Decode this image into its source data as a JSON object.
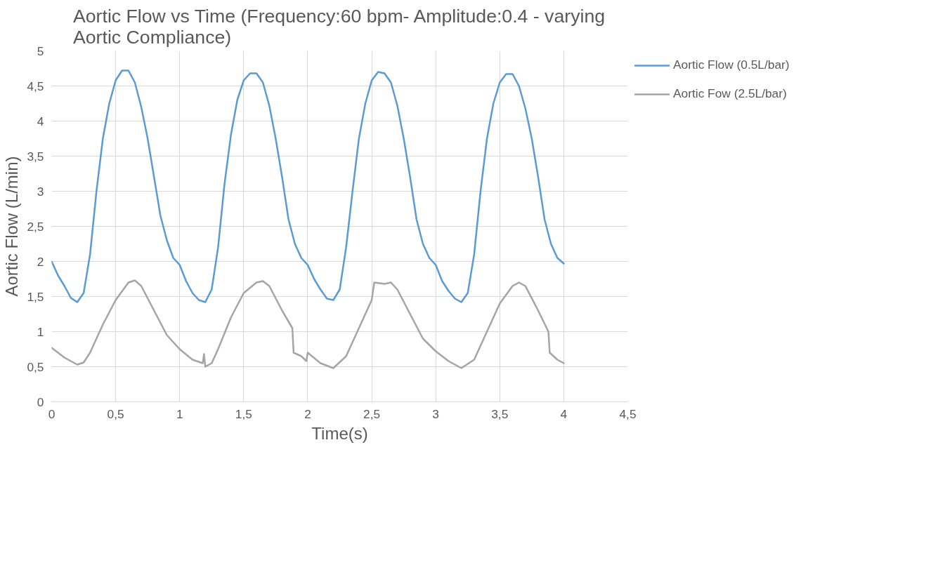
{
  "chart_data": {
    "type": "line",
    "title": "Aortic Flow vs Time (Frequency:60 bpm- Amplitude:0.4 - varying Aortic Compliance)",
    "xlabel": "Time(s)",
    "ylabel": "Aortic Flow (L/min)",
    "xlim": [
      0,
      4.5
    ],
    "xticks": [
      0,
      {
        "value": 0.5,
        "label": "0,5"
      },
      1,
      {
        "value": 1.5,
        "label": "1,5"
      },
      2,
      {
        "value": 2.5,
        "label": "2,5"
      },
      3,
      {
        "value": 3.5,
        "label": "3,5"
      },
      4,
      {
        "value": 4.5,
        "label": "4,5"
      }
    ],
    "ylim": [
      0,
      5
    ],
    "yticks": [
      0,
      {
        "value": 0.5,
        "label": "0,5"
      },
      1,
      {
        "value": 1.5,
        "label": "1,5"
      },
      2,
      {
        "value": 2.5,
        "label": "2,5"
      },
      3,
      {
        "value": 3.5,
        "label": "3,5"
      },
      4,
      {
        "value": 4.5,
        "label": "4,5"
      },
      5
    ],
    "grid": true,
    "legend": "right",
    "marker": "none",
    "line_style": "solid",
    "series": [
      {
        "name": "Aortic Flow (0.5L/bar)",
        "color": "#5b9bd5",
        "x": [
          0,
          0.05,
          0.1,
          0.15,
          0.2,
          0.25,
          0.3,
          0.35,
          0.4,
          0.45,
          0.5,
          0.55,
          0.6,
          0.65,
          0.7,
          0.75,
          0.8,
          0.85,
          0.9,
          0.95,
          1.0,
          1.05,
          1.1,
          1.15,
          1.2,
          1.25,
          1.3,
          1.35,
          1.4,
          1.45,
          1.5,
          1.55,
          1.6,
          1.65,
          1.7,
          1.75,
          1.8,
          1.85,
          1.9,
          1.95,
          2.0,
          2.05,
          2.1,
          2.15,
          2.2,
          2.25,
          2.3,
          2.35,
          2.4,
          2.45,
          2.5,
          2.55,
          2.6,
          2.65,
          2.7,
          2.75,
          2.8,
          2.85,
          2.9,
          2.95,
          3.0,
          3.05,
          3.1,
          3.15,
          3.2,
          3.25,
          3.3,
          3.35,
          3.4,
          3.45,
          3.5,
          3.55,
          3.6,
          3.65,
          3.7,
          3.75,
          3.8,
          3.85,
          3.9,
          3.95,
          4.0
        ],
        "values": [
          2.0,
          1.8,
          1.65,
          1.48,
          1.42,
          1.55,
          2.1,
          3.0,
          3.75,
          4.25,
          4.58,
          4.72,
          4.72,
          4.55,
          4.2,
          3.75,
          3.2,
          2.65,
          2.3,
          2.05,
          1.95,
          1.72,
          1.55,
          1.45,
          1.42,
          1.6,
          2.2,
          3.1,
          3.8,
          4.3,
          4.58,
          4.68,
          4.68,
          4.55,
          4.22,
          3.75,
          3.2,
          2.6,
          2.25,
          2.05,
          1.95,
          1.75,
          1.6,
          1.47,
          1.45,
          1.6,
          2.2,
          3.0,
          3.75,
          4.25,
          4.58,
          4.7,
          4.68,
          4.55,
          4.22,
          3.75,
          3.2,
          2.6,
          2.25,
          2.05,
          1.95,
          1.72,
          1.58,
          1.47,
          1.42,
          1.55,
          2.1,
          3.0,
          3.75,
          4.25,
          4.55,
          4.67,
          4.67,
          4.5,
          4.18,
          3.75,
          3.2,
          2.6,
          2.25,
          2.05,
          1.97
        ]
      },
      {
        "name": "Aortic Fow (2.5L/bar)",
        "color": "#a5a5a5",
        "x": [
          0,
          0.1,
          0.2,
          0.25,
          0.3,
          0.4,
          0.5,
          0.6,
          0.65,
          0.7,
          0.8,
          0.9,
          1.0,
          1.1,
          1.18,
          1.19,
          1.2,
          1.25,
          1.3,
          1.4,
          1.5,
          1.6,
          1.65,
          1.7,
          1.8,
          1.88,
          1.89,
          1.95,
          1.99,
          2.0,
          2.1,
          2.2,
          2.3,
          2.4,
          2.5,
          2.52,
          2.6,
          2.65,
          2.7,
          2.8,
          2.9,
          3.0,
          3.1,
          3.2,
          3.3,
          3.4,
          3.5,
          3.6,
          3.65,
          3.7,
          3.8,
          3.88,
          3.89,
          3.95,
          4.0
        ],
        "values": [
          0.77,
          0.63,
          0.53,
          0.56,
          0.7,
          1.1,
          1.45,
          1.7,
          1.73,
          1.65,
          1.3,
          0.95,
          0.75,
          0.6,
          0.55,
          0.68,
          0.5,
          0.55,
          0.75,
          1.2,
          1.55,
          1.7,
          1.72,
          1.65,
          1.3,
          1.05,
          0.7,
          0.65,
          0.58,
          0.7,
          0.55,
          0.48,
          0.65,
          1.05,
          1.45,
          1.7,
          1.68,
          1.7,
          1.6,
          1.25,
          0.9,
          0.72,
          0.58,
          0.48,
          0.6,
          1.0,
          1.4,
          1.65,
          1.7,
          1.65,
          1.3,
          1.0,
          0.7,
          0.6,
          0.55
        ]
      }
    ]
  }
}
